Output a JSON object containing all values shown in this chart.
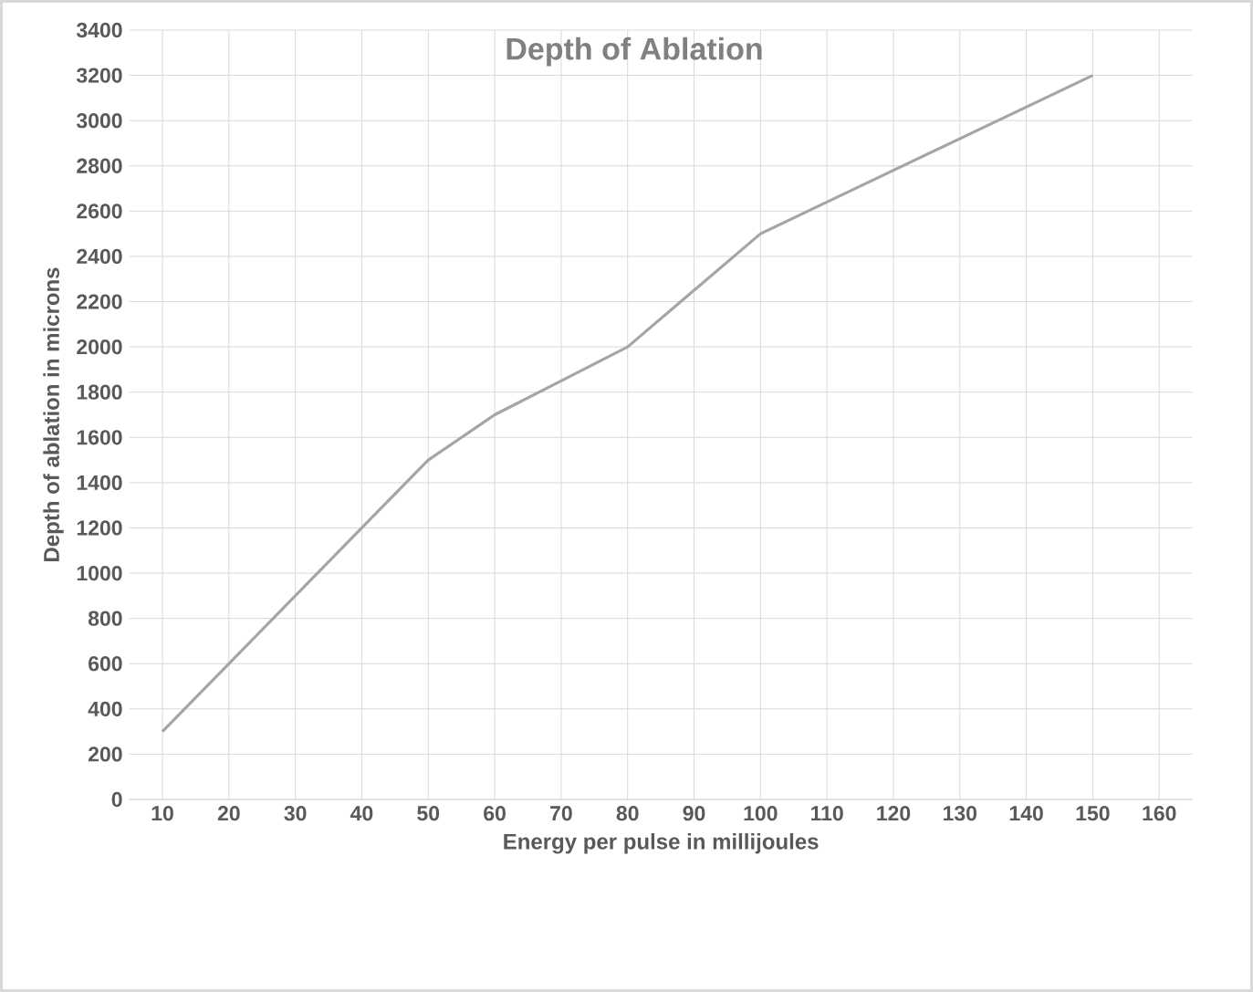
{
  "chart_data": {
    "type": "line",
    "title": "Depth of Ablation",
    "xlabel": "Energy per pulse in millijoules",
    "ylabel": "Depth of ablation in microns",
    "categories": [
      "10",
      "20",
      "30",
      "40",
      "50",
      "60",
      "70",
      "80",
      "90",
      "100",
      "110",
      "120",
      "130",
      "140",
      "150",
      "160"
    ],
    "series": [
      {
        "color": "#a5a5a5",
        "values": [
          300,
          600,
          900,
          1200,
          1500,
          1700,
          1850,
          2000,
          2250,
          2500,
          2640,
          2780,
          2920,
          3060,
          3200,
          null
        ]
      }
    ],
    "ylim": [
      0,
      3400
    ],
    "yticks": [
      0,
      200,
      400,
      600,
      800,
      1000,
      1200,
      1400,
      1600,
      1800,
      2000,
      2200,
      2400,
      2600,
      2800,
      3000,
      3200,
      3400
    ],
    "grid": true,
    "marker": "none",
    "line_style": "solid"
  }
}
